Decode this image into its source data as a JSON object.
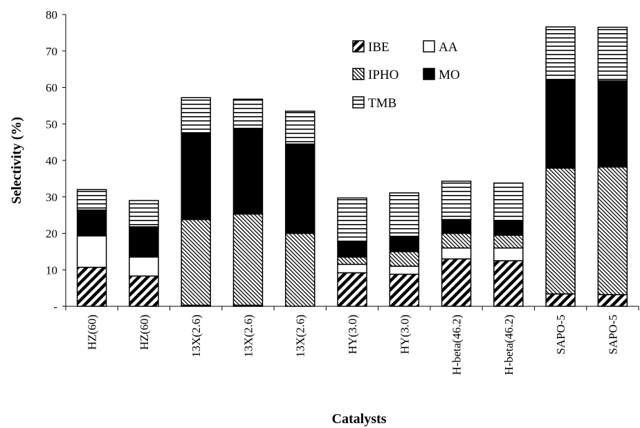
{
  "chart_data": {
    "type": "bar",
    "stacked": true,
    "title": "",
    "xlabel": "Catalysts",
    "ylabel": "Selectivity (%)",
    "ylim": [
      0,
      80
    ],
    "yticks": [
      0,
      10,
      20,
      30,
      40,
      50,
      60,
      70,
      80
    ],
    "ytick_labels": [
      "-",
      "10",
      "20",
      "30",
      "40",
      "50",
      "60",
      "70",
      "80"
    ],
    "grid": false,
    "legend_position": "top-center",
    "categories": [
      "HZ(60)",
      "HZ(60)",
      "13X(2.6)",
      "13X(2.6)",
      "13X(2.6)",
      "HY(3.0)",
      "HY(3.0)",
      "H-beta(46.2)",
      "H-beta(46.2)",
      "SAPO-5",
      "SAPO-5"
    ],
    "series": [
      {
        "name": "IBE",
        "pattern": "diag-thick",
        "values": [
          10.7,
          8.3,
          0.3,
          0.3,
          0,
          9.2,
          8.8,
          13.0,
          12.5,
          3.4,
          3.2
        ]
      },
      {
        "name": "AA",
        "pattern": "white",
        "values": [
          8.6,
          5.2,
          0,
          0,
          0,
          2.3,
          2.2,
          3.0,
          3.5,
          0,
          0
        ]
      },
      {
        "name": "IPHO",
        "pattern": "diag-thin",
        "values": [
          0,
          0,
          23.5,
          25.0,
          20.0,
          2.0,
          4.0,
          4.0,
          3.5,
          34.5,
          35.0
        ]
      },
      {
        "name": "MO",
        "pattern": "black",
        "values": [
          7.1,
          8.3,
          23.8,
          23.5,
          24.5,
          4.2,
          4.2,
          3.8,
          4.0,
          24.1,
          23.6
        ]
      },
      {
        "name": "TMB",
        "pattern": "hlines",
        "values": [
          5.6,
          7.2,
          9.6,
          8.0,
          9.0,
          12.0,
          11.9,
          10.5,
          10.3,
          14.6,
          14.7
        ]
      }
    ]
  }
}
